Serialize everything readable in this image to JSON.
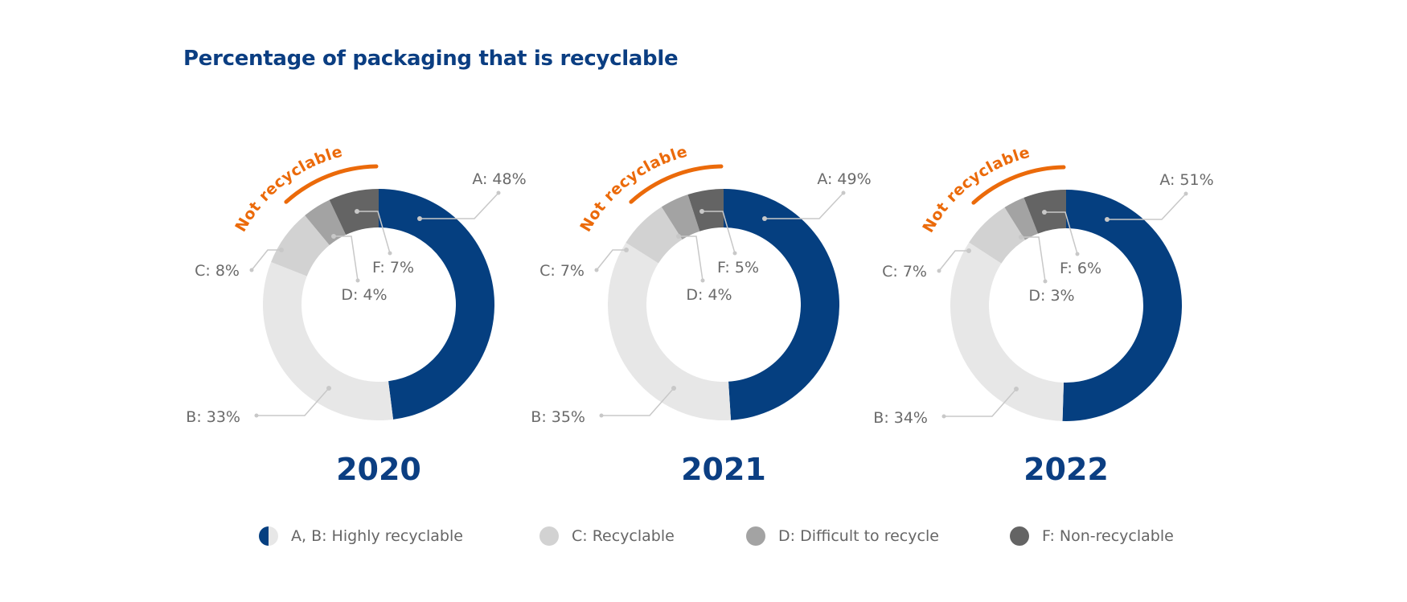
{
  "title": "Percentage of packaging that is recyclable",
  "chart_data": {
    "type": "pie",
    "subtype": "donut",
    "title": "Percentage of packaging that is recyclable",
    "unit": "%",
    "categories": [
      "A",
      "B",
      "C",
      "D",
      "F"
    ],
    "annotation": "Not recyclable",
    "charts": [
      {
        "year": "2020",
        "values": {
          "A": 48,
          "B": 33,
          "C": 8,
          "D": 4,
          "F": 7
        }
      },
      {
        "year": "2021",
        "values": {
          "A": 49,
          "B": 35,
          "C": 7,
          "D": 4,
          "F": 5
        }
      },
      {
        "year": "2022",
        "values": {
          "A": 51,
          "B": 34,
          "C": 7,
          "D": 3,
          "F": 6
        }
      }
    ],
    "colors": {
      "A": "#053f80",
      "B": "#e7e7e7",
      "C": "#d2d2d2",
      "D": "#a3a3a3",
      "F": "#646464",
      "annotation": "#eb6a0a",
      "leader": "#c8c8c8"
    },
    "legend": [
      {
        "key": "AB",
        "label": "A, B: Highly recyclable"
      },
      {
        "key": "C",
        "label": "C: Recyclable"
      },
      {
        "key": "D",
        "label": "D: Difficult to recycle"
      },
      {
        "key": "F",
        "label": "F: Non-recyclable"
      }
    ],
    "legend_position": "bottom"
  }
}
